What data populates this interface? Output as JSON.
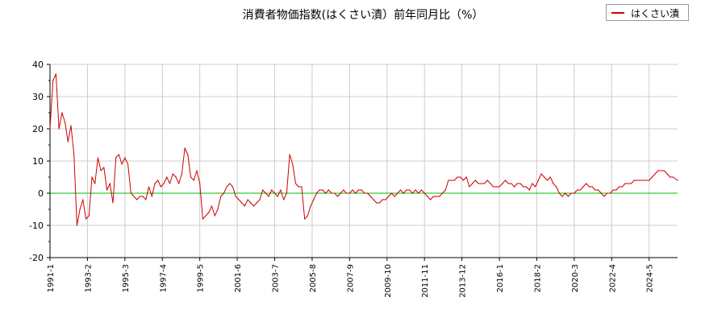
{
  "chart_data": {
    "type": "line",
    "title": "消費者物価指数(はくさい漬）前年同月比（%）",
    "xlabel": "",
    "ylabel": "",
    "ylim": [
      -20,
      40
    ],
    "yticks": [
      -20,
      -10,
      0,
      10,
      20,
      30,
      40
    ],
    "xlim": [
      "1991-1",
      "2025-12"
    ],
    "xticks": [
      "1991-1",
      "1993-2",
      "1995-3",
      "1997-4",
      "1999-5",
      "2001-6",
      "2003-7",
      "2005-8",
      "2007-9",
      "2009-10",
      "2011-11",
      "2013-12",
      "2016-1",
      "2018-2",
      "2020-3",
      "2022-4",
      "2024-5"
    ],
    "grid": true,
    "legend_position": "top-right",
    "zero_line_color": "#00c000",
    "series": [
      {
        "name": "はくさい漬",
        "color": "#cc0000",
        "points": [
          [
            "1991-1",
            20
          ],
          [
            "1991-3",
            35
          ],
          [
            "1991-5",
            37
          ],
          [
            "1991-7",
            20
          ],
          [
            "1991-9",
            25
          ],
          [
            "1991-11",
            22
          ],
          [
            "1992-1",
            16
          ],
          [
            "1992-3",
            21
          ],
          [
            "1992-5",
            12
          ],
          [
            "1992-7",
            -10
          ],
          [
            "1992-9",
            -5
          ],
          [
            "1992-11",
            -2
          ],
          [
            "1993-1",
            -8
          ],
          [
            "1993-3",
            -7
          ],
          [
            "1993-5",
            5
          ],
          [
            "1993-7",
            3
          ],
          [
            "1993-9",
            11
          ],
          [
            "1993-11",
            7
          ],
          [
            "1994-1",
            8
          ],
          [
            "1994-3",
            1
          ],
          [
            "1994-5",
            3
          ],
          [
            "1994-7",
            -3
          ],
          [
            "1994-9",
            11
          ],
          [
            "1994-11",
            12
          ],
          [
            "1995-1",
            9
          ],
          [
            "1995-3",
            11
          ],
          [
            "1995-5",
            9
          ],
          [
            "1995-7",
            0
          ],
          [
            "1995-9",
            -1
          ],
          [
            "1995-11",
            -2
          ],
          [
            "1996-1",
            -1
          ],
          [
            "1996-3",
            -1
          ],
          [
            "1996-5",
            -2
          ],
          [
            "1996-7",
            2
          ],
          [
            "1996-9",
            -1
          ],
          [
            "1996-11",
            3
          ],
          [
            "1997-1",
            4
          ],
          [
            "1997-3",
            2
          ],
          [
            "1997-5",
            3
          ],
          [
            "1997-7",
            5
          ],
          [
            "1997-9",
            3
          ],
          [
            "1997-11",
            6
          ],
          [
            "1998-1",
            5
          ],
          [
            "1998-3",
            3
          ],
          [
            "1998-5",
            6
          ],
          [
            "1998-7",
            14
          ],
          [
            "1998-9",
            12
          ],
          [
            "1998-11",
            5
          ],
          [
            "1999-1",
            4
          ],
          [
            "1999-3",
            7
          ],
          [
            "1999-5",
            3
          ],
          [
            "1999-7",
            -8
          ],
          [
            "1999-9",
            -7
          ],
          [
            "1999-11",
            -6
          ],
          [
            "2000-1",
            -4
          ],
          [
            "2000-3",
            -7
          ],
          [
            "2000-5",
            -5
          ],
          [
            "2000-7",
            -1
          ],
          [
            "2000-9",
            0
          ],
          [
            "2000-11",
            2
          ],
          [
            "2001-1",
            3
          ],
          [
            "2001-3",
            2
          ],
          [
            "2001-5",
            -1
          ],
          [
            "2001-7",
            -2
          ],
          [
            "2001-9",
            -3
          ],
          [
            "2001-11",
            -4
          ],
          [
            "2002-1",
            -2
          ],
          [
            "2002-3",
            -3
          ],
          [
            "2002-5",
            -4
          ],
          [
            "2002-7",
            -3
          ],
          [
            "2002-9",
            -2
          ],
          [
            "2002-11",
            1
          ],
          [
            "2003-1",
            0
          ],
          [
            "2003-3",
            -1
          ],
          [
            "2003-5",
            1
          ],
          [
            "2003-7",
            0
          ],
          [
            "2003-9",
            -1
          ],
          [
            "2003-11",
            1
          ],
          [
            "2004-1",
            -2
          ],
          [
            "2004-3",
            0
          ],
          [
            "2004-5",
            12
          ],
          [
            "2004-7",
            9
          ],
          [
            "2004-9",
            3
          ],
          [
            "2004-11",
            2
          ],
          [
            "2005-1",
            2
          ],
          [
            "2005-3",
            -8
          ],
          [
            "2005-5",
            -7
          ],
          [
            "2005-7",
            -4
          ],
          [
            "2005-9",
            -2
          ],
          [
            "2005-11",
            0
          ],
          [
            "2006-1",
            1
          ],
          [
            "2006-3",
            1
          ],
          [
            "2006-5",
            0
          ],
          [
            "2006-7",
            1
          ],
          [
            "2006-9",
            0
          ],
          [
            "2006-11",
            0
          ],
          [
            "2007-1",
            -1
          ],
          [
            "2007-3",
            0
          ],
          [
            "2007-5",
            1
          ],
          [
            "2007-7",
            0
          ],
          [
            "2007-9",
            0
          ],
          [
            "2007-11",
            1
          ],
          [
            "2008-1",
            0
          ],
          [
            "2008-3",
            1
          ],
          [
            "2008-5",
            1
          ],
          [
            "2008-7",
            0
          ],
          [
            "2008-9",
            0
          ],
          [
            "2008-11",
            -1
          ],
          [
            "2009-1",
            -2
          ],
          [
            "2009-3",
            -3
          ],
          [
            "2009-5",
            -3
          ],
          [
            "2009-7",
            -2
          ],
          [
            "2009-9",
            -2
          ],
          [
            "2009-11",
            -1
          ],
          [
            "2010-1",
            0
          ],
          [
            "2010-3",
            -1
          ],
          [
            "2010-5",
            0
          ],
          [
            "2010-7",
            1
          ],
          [
            "2010-9",
            0
          ],
          [
            "2010-11",
            1
          ],
          [
            "2011-1",
            1
          ],
          [
            "2011-3",
            0
          ],
          [
            "2011-5",
            1
          ],
          [
            "2011-7",
            0
          ],
          [
            "2011-9",
            1
          ],
          [
            "2011-11",
            0
          ],
          [
            "2012-1",
            -1
          ],
          [
            "2012-3",
            -2
          ],
          [
            "2012-5",
            -1
          ],
          [
            "2012-7",
            -1
          ],
          [
            "2012-9",
            -1
          ],
          [
            "2012-11",
            0
          ],
          [
            "2013-1",
            1
          ],
          [
            "2013-3",
            4
          ],
          [
            "2013-5",
            4
          ],
          [
            "2013-7",
            4
          ],
          [
            "2013-9",
            5
          ],
          [
            "2013-11",
            5
          ],
          [
            "2014-1",
            4
          ],
          [
            "2014-3",
            5
          ],
          [
            "2014-5",
            2
          ],
          [
            "2014-7",
            3
          ],
          [
            "2014-9",
            4
          ],
          [
            "2014-11",
            3
          ],
          [
            "2015-1",
            3
          ],
          [
            "2015-3",
            3
          ],
          [
            "2015-5",
            4
          ],
          [
            "2015-7",
            3
          ],
          [
            "2015-9",
            2
          ],
          [
            "2015-11",
            2
          ],
          [
            "2016-1",
            2
          ],
          [
            "2016-3",
            3
          ],
          [
            "2016-5",
            4
          ],
          [
            "2016-7",
            3
          ],
          [
            "2016-9",
            3
          ],
          [
            "2016-11",
            2
          ],
          [
            "2017-1",
            3
          ],
          [
            "2017-3",
            3
          ],
          [
            "2017-5",
            2
          ],
          [
            "2017-7",
            2
          ],
          [
            "2017-9",
            1
          ],
          [
            "2017-11",
            3
          ],
          [
            "2018-1",
            2
          ],
          [
            "2018-3",
            4
          ],
          [
            "2018-5",
            6
          ],
          [
            "2018-7",
            5
          ],
          [
            "2018-9",
            4
          ],
          [
            "2018-11",
            5
          ],
          [
            "2019-1",
            3
          ],
          [
            "2019-3",
            2
          ],
          [
            "2019-5",
            0
          ],
          [
            "2019-7",
            -1
          ],
          [
            "2019-9",
            0
          ],
          [
            "2019-11",
            -1
          ],
          [
            "2020-1",
            0
          ],
          [
            "2020-3",
            0
          ],
          [
            "2020-5",
            1
          ],
          [
            "2020-7",
            1
          ],
          [
            "2020-9",
            2
          ],
          [
            "2020-11",
            3
          ],
          [
            "2021-1",
            2
          ],
          [
            "2021-3",
            2
          ],
          [
            "2021-5",
            1
          ],
          [
            "2021-7",
            1
          ],
          [
            "2021-9",
            0
          ],
          [
            "2021-11",
            -1
          ],
          [
            "2022-1",
            0
          ],
          [
            "2022-3",
            0
          ],
          [
            "2022-5",
            1
          ],
          [
            "2022-7",
            1
          ],
          [
            "2022-9",
            2
          ],
          [
            "2022-11",
            2
          ],
          [
            "2023-1",
            3
          ],
          [
            "2023-3",
            3
          ],
          [
            "2023-5",
            3
          ],
          [
            "2023-7",
            4
          ],
          [
            "2023-9",
            4
          ],
          [
            "2023-11",
            4
          ],
          [
            "2024-1",
            4
          ],
          [
            "2024-3",
            4
          ],
          [
            "2024-5",
            4
          ],
          [
            "2024-7",
            5
          ],
          [
            "2024-9",
            6
          ],
          [
            "2024-11",
            7
          ],
          [
            "2025-1",
            7
          ],
          [
            "2025-3",
            7
          ],
          [
            "2025-5",
            6
          ],
          [
            "2025-7",
            5
          ],
          [
            "2025-9",
            5
          ],
          [
            "2025-12",
            4
          ]
        ]
      }
    ]
  }
}
